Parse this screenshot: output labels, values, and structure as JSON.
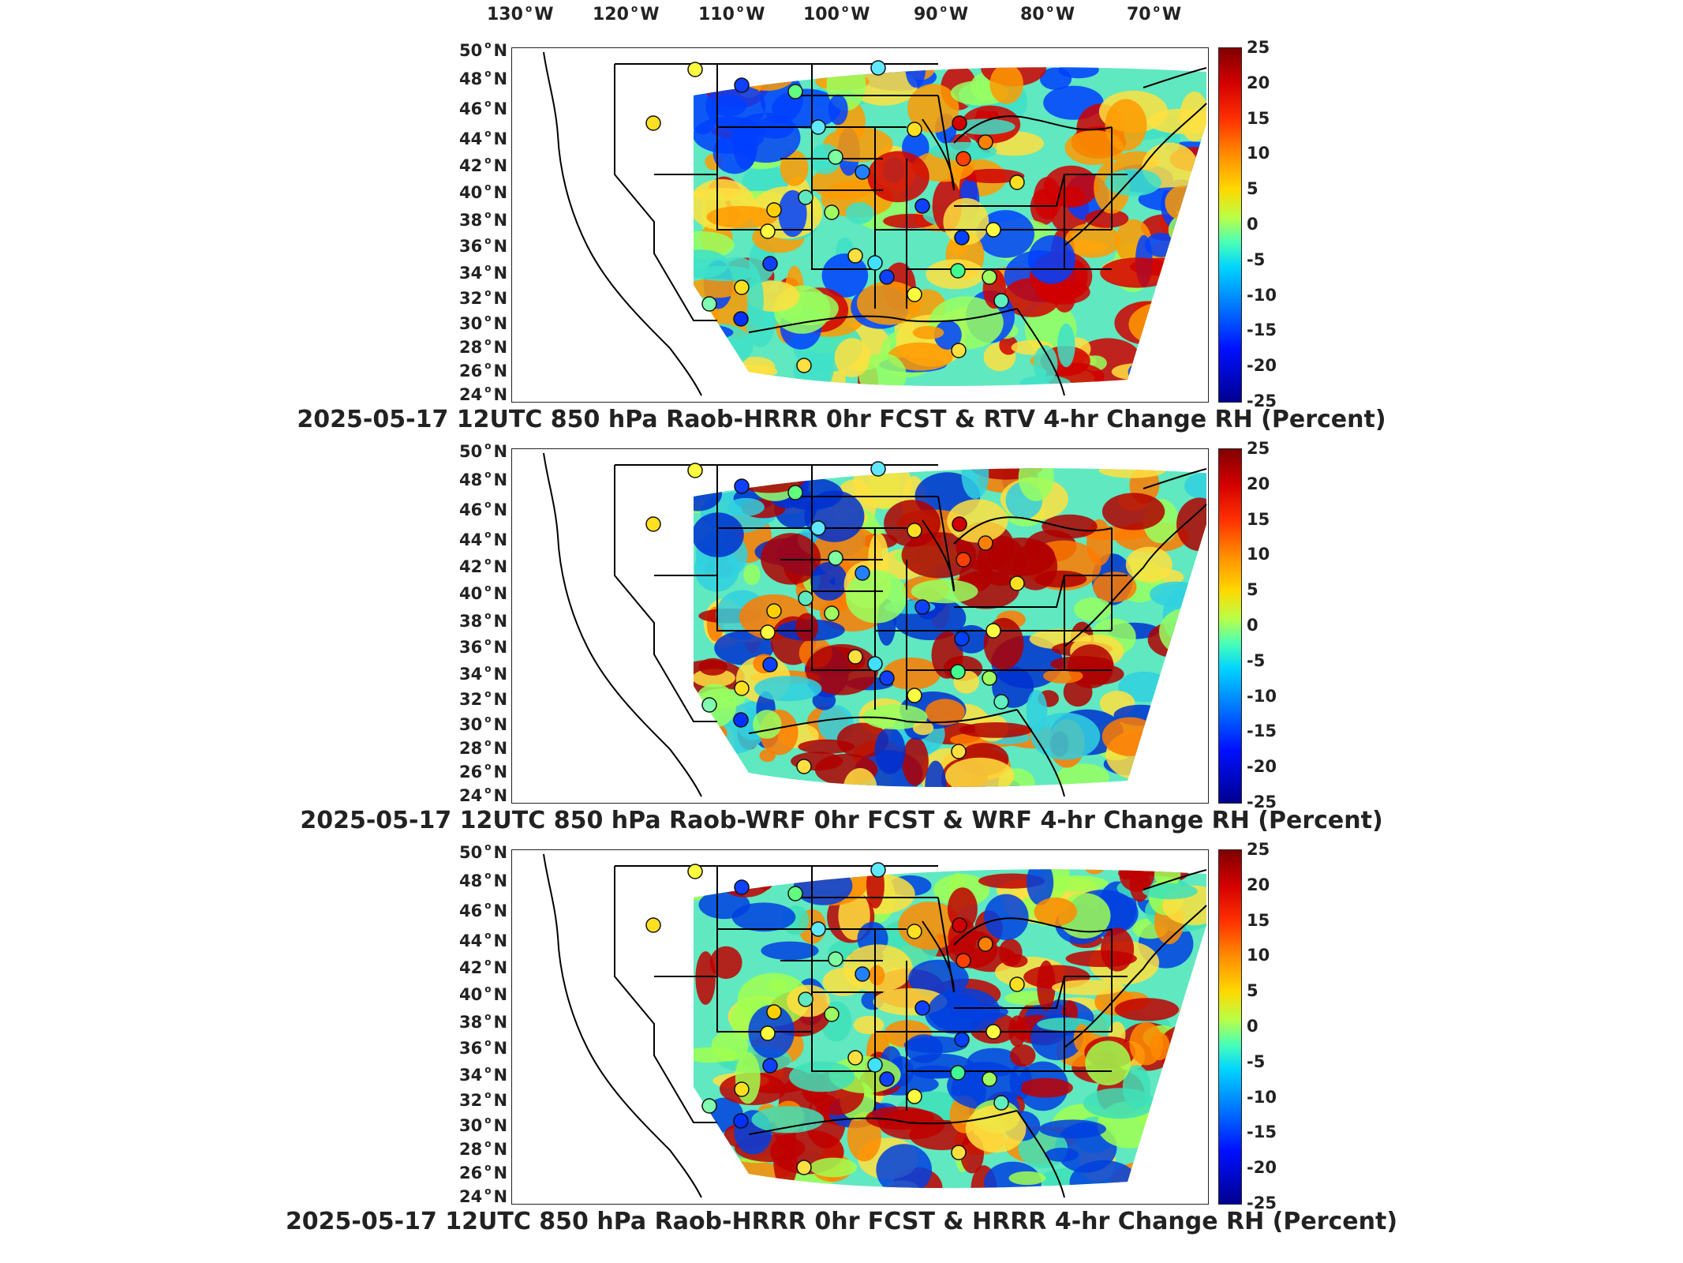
{
  "lon_labels": [
    "130",
    "120",
    "110",
    "100",
    "90",
    "80",
    "70"
  ],
  "lon_suffix": "W",
  "lat_labels": [
    "50",
    "48",
    "46",
    "44",
    "42",
    "40",
    "38",
    "36",
    "34",
    "32",
    "30",
    "28",
    "26",
    "24"
  ],
  "lat_suffix": "N",
  "colorbar": {
    "ticks": [
      "25",
      "20",
      "15",
      "10",
      "5",
      "0",
      "-5",
      "-10",
      "-15",
      "-20",
      "-25"
    ],
    "range": [
      -25,
      25
    ],
    "colors": [
      "#800000",
      "#ff3000",
      "#ffd800",
      "#48ffb8",
      "#0080ff",
      "#000090"
    ]
  },
  "panels": [
    {
      "caption": "2025-05-17 12UTC 850 hPa Raob-HRRR 0hr FCST & RTV 4-hr Change RH (Percent)",
      "field_colors": [
        "#ff9a00",
        "#3ee0c8",
        "#ffe040",
        "#0040ff",
        "#d00000",
        "#98ff60"
      ]
    },
    {
      "caption": "2025-05-17 12UTC 850 hPa Raob-WRF 0hr FCST & WRF 4-hr Change RH (Percent)",
      "field_colors": [
        "#ff7a00",
        "#30d0e0",
        "#ffe040",
        "#0030d0",
        "#b00000",
        "#98ff60"
      ]
    },
    {
      "caption": "2025-05-17 12UTC 850 hPa Raob-HRRR 0hr FCST & HRRR 4-hr Change RH (Percent)",
      "field_colors": [
        "#ff8a00",
        "#40e0b8",
        "#ffe040",
        "#0040e0",
        "#c00000",
        "#a0ff50"
      ]
    }
  ]
}
